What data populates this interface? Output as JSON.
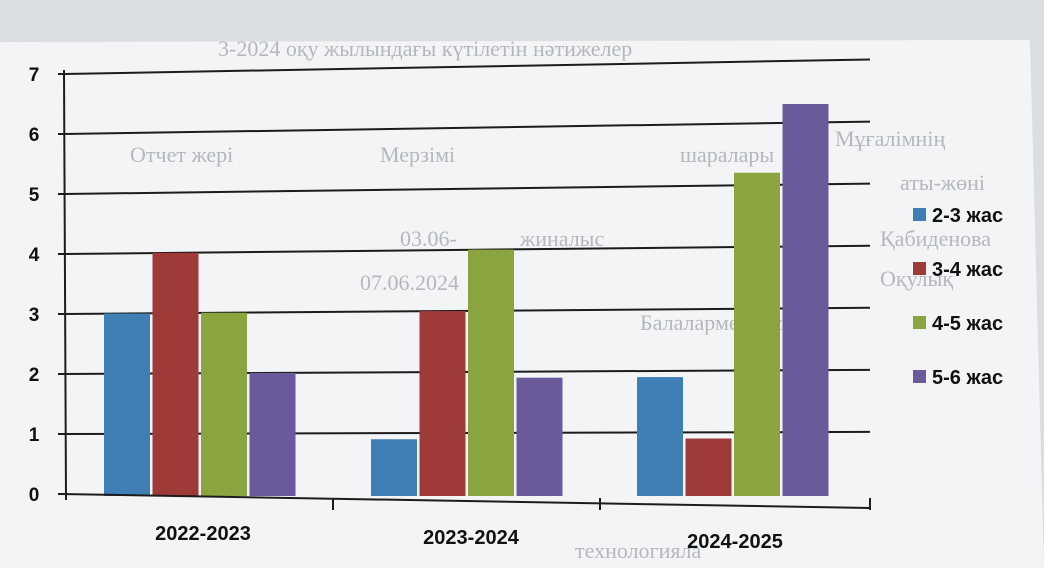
{
  "colors": {
    "series": [
      "#3f7fb5",
      "#9e3a38",
      "#8aa43f",
      "#6a5a9c"
    ],
    "grid": "#1c1c1c",
    "paper": "#f4f5f6"
  },
  "background_text": [
    "3-2024 оқу жылындағы күтілетін нәтижелер",
    "Мұғалімнің",
    "шаралары",
    "Мерзімі",
    "Отчет жері",
    "аты-жөні",
    "Қабиденова",
    "жиналыс",
    "03.06-",
    "Оқулық",
    "07.06.2024",
    "Балалармен жұмыс",
    "технологияла"
  ],
  "chart_data": {
    "type": "bar",
    "categories": [
      "2022-2023",
      "2023-2024",
      "2024-2025"
    ],
    "series": [
      {
        "name": "2-3 жас",
        "values": [
          3,
          0.9,
          1.9
        ]
      },
      {
        "name": "3-4 жас",
        "values": [
          4,
          3,
          0.9
        ]
      },
      {
        "name": "4-5 жас",
        "values": [
          3,
          4,
          5.2
        ]
      },
      {
        "name": "5-6 жас",
        "values": [
          2,
          1.9,
          6.3
        ]
      }
    ],
    "yticks": [
      "0",
      "1",
      "2",
      "3",
      "4",
      "5",
      "6",
      "7"
    ],
    "ylim": [
      0,
      7
    ],
    "title": "",
    "xlabel": "",
    "ylabel": "",
    "grid": true,
    "legend_position": "right"
  }
}
